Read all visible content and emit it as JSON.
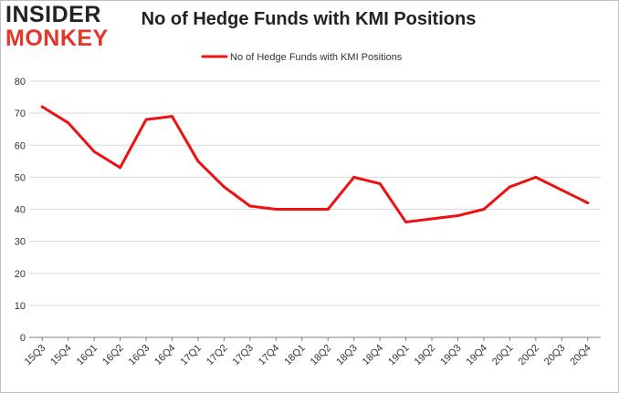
{
  "logo": {
    "line1": "INSIDER",
    "line2": "MONKEY"
  },
  "colors": {
    "series": "#ee1111",
    "grid": "#d9d9d9",
    "axis": "#7f7f7f",
    "logo_accent": "#e2372a"
  },
  "chart_data": {
    "type": "line",
    "title": "No of Hedge Funds with KMI Positions",
    "xlabel": "",
    "ylabel": "",
    "ylim": [
      0,
      80
    ],
    "yticks": [
      0,
      10,
      20,
      30,
      40,
      50,
      60,
      70,
      80
    ],
    "grid": "horizontal",
    "legend_position": "top-center",
    "categories": [
      "15Q3",
      "15Q4",
      "16Q1",
      "16Q2",
      "16Q3",
      "16Q4",
      "17Q1",
      "17Q2",
      "17Q3",
      "17Q4",
      "18Q1",
      "18Q2",
      "18Q3",
      "18Q4",
      "19Q1",
      "19Q2",
      "19Q3",
      "19Q4",
      "20Q1",
      "20Q2",
      "20Q3",
      "20Q4"
    ],
    "series": [
      {
        "name": "No of Hedge Funds with KMI Positions",
        "values": [
          72,
          67,
          58,
          53,
          68,
          69,
          55,
          47,
          41,
          40,
          40,
          40,
          50,
          48,
          36,
          37,
          38,
          40,
          47,
          50,
          46,
          42
        ]
      }
    ]
  }
}
